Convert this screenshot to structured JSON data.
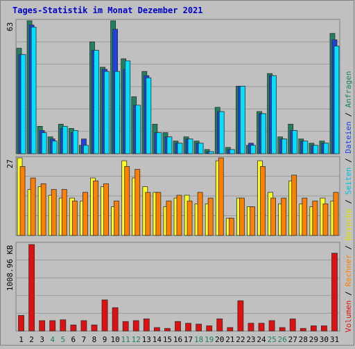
{
  "title": "Tages-Statistik im Monat Dezember 2021",
  "colors": {
    "background": "#c0c0c0",
    "title": "#0000cc",
    "anfragen": "#208060",
    "dateien": "#2040e0",
    "seiten": "#00e0ff",
    "besuche": "#ffff20",
    "rechner": "#ff8000",
    "volumen": "#e01010",
    "weekend": "#208060",
    "label_default": "#000000"
  },
  "chart_data": [
    {
      "type": "bar",
      "name": "hits-panel",
      "ylim": [
        0,
        63
      ],
      "max_label": "63",
      "categories": [
        "1",
        "2",
        "3",
        "4",
        "5",
        "6",
        "7",
        "8",
        "9",
        "10",
        "11",
        "12",
        "13",
        "14",
        "15",
        "16",
        "17",
        "18",
        "19",
        "20",
        "21",
        "22",
        "23",
        "24",
        "25",
        "26",
        "27",
        "28",
        "29",
        "30",
        "31"
      ],
      "series": [
        {
          "name": "Anfragen",
          "values": [
            50,
            63,
            13,
            8,
            14,
            12,
            4,
            53,
            41,
            63,
            45,
            27,
            39,
            14,
            10,
            6,
            8,
            6,
            2,
            22,
            3,
            32,
            4,
            20,
            38,
            8,
            14,
            7,
            5,
            6,
            57
          ]
        },
        {
          "name": "Dateien",
          "values": [
            47,
            61,
            11,
            7,
            12,
            10,
            7,
            49,
            40,
            59,
            40,
            23,
            37,
            10,
            8,
            5,
            7,
            5,
            1,
            20,
            2,
            32,
            5,
            19,
            37,
            7,
            11,
            6,
            4,
            5,
            54
          ]
        },
        {
          "name": "Seiten",
          "values": [
            47,
            60,
            10,
            6,
            13,
            11,
            4,
            49,
            39,
            39,
            44,
            23,
            36,
            10,
            8,
            5,
            7,
            5,
            1,
            20,
            2,
            32,
            4,
            19,
            37,
            7,
            11,
            6,
            4,
            5,
            51
          ]
        }
      ]
    },
    {
      "type": "bar",
      "name": "visits-panel",
      "ylim": [
        0,
        27
      ],
      "max_label": "27",
      "categories": [
        "1",
        "2",
        "3",
        "4",
        "5",
        "6",
        "7",
        "8",
        "9",
        "10",
        "11",
        "12",
        "13",
        "14",
        "15",
        "16",
        "17",
        "18",
        "19",
        "20",
        "21",
        "22",
        "23",
        "24",
        "25",
        "26",
        "27",
        "28",
        "29",
        "30",
        "31"
      ],
      "series": [
        {
          "name": "Besuche",
          "values": [
            27,
            16,
            17,
            14,
            13,
            13,
            12,
            20,
            17,
            10,
            26,
            20,
            17,
            15,
            10,
            13,
            14,
            11,
            11,
            26,
            6,
            13,
            10,
            26,
            15,
            11,
            19,
            11,
            10,
            13,
            12
          ]
        },
        {
          "name": "Rechner",
          "values": [
            24,
            20,
            18,
            16,
            16,
            12,
            15,
            19,
            18,
            12,
            24,
            23,
            15,
            15,
            12,
            14,
            12,
            15,
            13,
            27,
            6,
            13,
            10,
            24,
            13,
            13,
            21,
            13,
            12,
            11,
            15
          ]
        }
      ]
    },
    {
      "type": "bar",
      "name": "volume-panel",
      "ylim": [
        0,
        1008.96
      ],
      "max_label": "1008.96 KB",
      "categories": [
        "1",
        "2",
        "3",
        "4",
        "5",
        "6",
        "7",
        "8",
        "9",
        "10",
        "11",
        "12",
        "13",
        "14",
        "15",
        "16",
        "17",
        "18",
        "19",
        "20",
        "21",
        "22",
        "23",
        "24",
        "25",
        "26",
        "27",
        "28",
        "29",
        "30",
        "31"
      ],
      "series": [
        {
          "name": "Volumen",
          "values": [
            180,
            1000,
            120,
            120,
            130,
            70,
            120,
            70,
            360,
            270,
            110,
            120,
            140,
            40,
            30,
            110,
            90,
            80,
            60,
            140,
            40,
            350,
            90,
            90,
            120,
            40,
            140,
            30,
            60,
            60,
            900
          ]
        }
      ]
    }
  ],
  "x_labels": [
    {
      "text": "1",
      "weekend": false
    },
    {
      "text": "2",
      "weekend": false
    },
    {
      "text": "3",
      "weekend": false
    },
    {
      "text": "4",
      "weekend": true
    },
    {
      "text": "5",
      "weekend": true
    },
    {
      "text": "6",
      "weekend": false
    },
    {
      "text": "7",
      "weekend": false
    },
    {
      "text": "8",
      "weekend": false
    },
    {
      "text": "9",
      "weekend": false
    },
    {
      "text": "10",
      "weekend": false
    },
    {
      "text": "11",
      "weekend": true
    },
    {
      "text": "12",
      "weekend": true
    },
    {
      "text": "13",
      "weekend": false
    },
    {
      "text": "14",
      "weekend": false
    },
    {
      "text": "15",
      "weekend": false
    },
    {
      "text": "16",
      "weekend": false
    },
    {
      "text": "17",
      "weekend": false
    },
    {
      "text": "18",
      "weekend": true
    },
    {
      "text": "19",
      "weekend": true
    },
    {
      "text": "20",
      "weekend": false
    },
    {
      "text": "21",
      "weekend": false
    },
    {
      "text": "22",
      "weekend": false
    },
    {
      "text": "23",
      "weekend": false
    },
    {
      "text": "24",
      "weekend": false
    },
    {
      "text": "25",
      "weekend": true
    },
    {
      "text": "26",
      "weekend": true
    },
    {
      "text": "27",
      "weekend": false
    },
    {
      "text": "28",
      "weekend": false
    },
    {
      "text": "29",
      "weekend": false
    },
    {
      "text": "30",
      "weekend": false
    },
    {
      "text": "31",
      "weekend": false
    }
  ],
  "legend_right": [
    {
      "text": "Volumen",
      "color": "#e01010"
    },
    {
      "text": " / ",
      "color": "#000000"
    },
    {
      "text": "Rechner",
      "color": "#ff8000"
    },
    {
      "text": " / ",
      "color": "#000000"
    },
    {
      "text": "Besuche",
      "color": "#e0e000"
    },
    {
      "text": " / ",
      "color": "#000000"
    },
    {
      "text": "Seiten",
      "color": "#00c0e0"
    },
    {
      "text": " / ",
      "color": "#000000"
    },
    {
      "text": "Dateien",
      "color": "#2040e0"
    },
    {
      "text": " / ",
      "color": "#000000"
    },
    {
      "text": "Anfragen",
      "color": "#208060"
    }
  ]
}
